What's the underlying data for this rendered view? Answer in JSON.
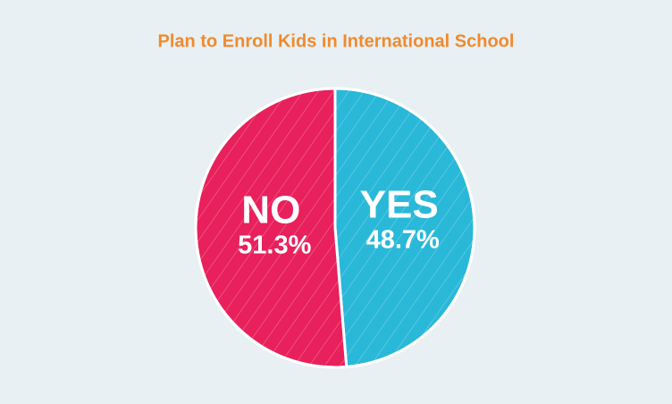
{
  "chart_data": {
    "type": "pie",
    "title": "Plan to Enroll Kids in International School",
    "categories": [
      "YES",
      "NO"
    ],
    "values": [
      48.7,
      51.3
    ],
    "value_labels": [
      "48.7%",
      "51.3%"
    ],
    "colors": [
      "#29b8d8",
      "#e8205c"
    ]
  }
}
